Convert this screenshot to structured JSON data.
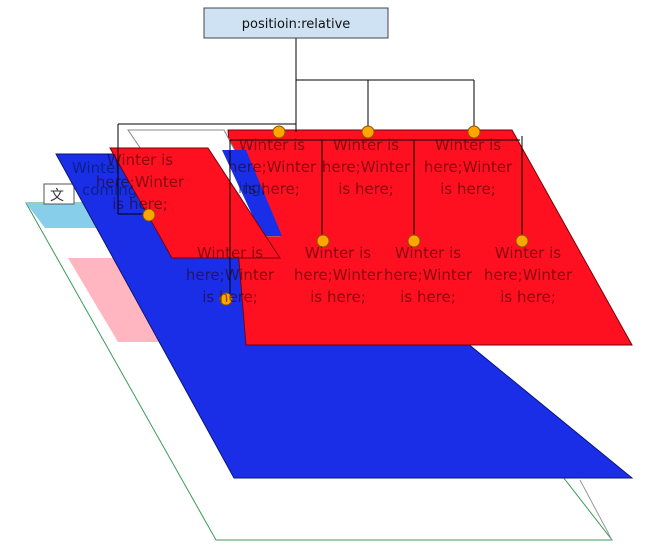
{
  "root_node": {
    "label": "positioin:relative"
  },
  "corner_glyph": "文",
  "blue_layer_text": [
    "Winter is",
    "coming;"
  ],
  "blue_layer_text_2": [
    "ing;"
  ],
  "red_cells": [
    {
      "lines": [
        "Winter is",
        "here;Winter",
        "is here;"
      ]
    },
    {
      "lines": [
        "Winter is",
        "here;Winter",
        "is here;"
      ]
    },
    {
      "lines": [
        "Winter is",
        "here;Winter",
        "is here;"
      ]
    },
    {
      "lines": [
        "Winter is",
        "here;Winter",
        "is here;"
      ]
    },
    {
      "lines": [
        "Winter is",
        "here;Winter",
        "is here;"
      ]
    },
    {
      "lines": [
        "Winter is",
        "here;Winter",
        "is here;"
      ]
    },
    {
      "lines": [
        "Winter is",
        "here;Winter",
        "is here;"
      ]
    },
    {
      "lines": [
        "Winter is",
        "here;Winter",
        "is here;"
      ]
    }
  ],
  "colors": {
    "red_layer": "#ff1020",
    "blue_layer": "#1a2ee8",
    "sky_bar": "#87ceeb",
    "pink_block": "#ffb6c1",
    "node_fill": "#cfe2f3",
    "joint_fill": "#ffa500",
    "outline": "#3c9a5a"
  }
}
